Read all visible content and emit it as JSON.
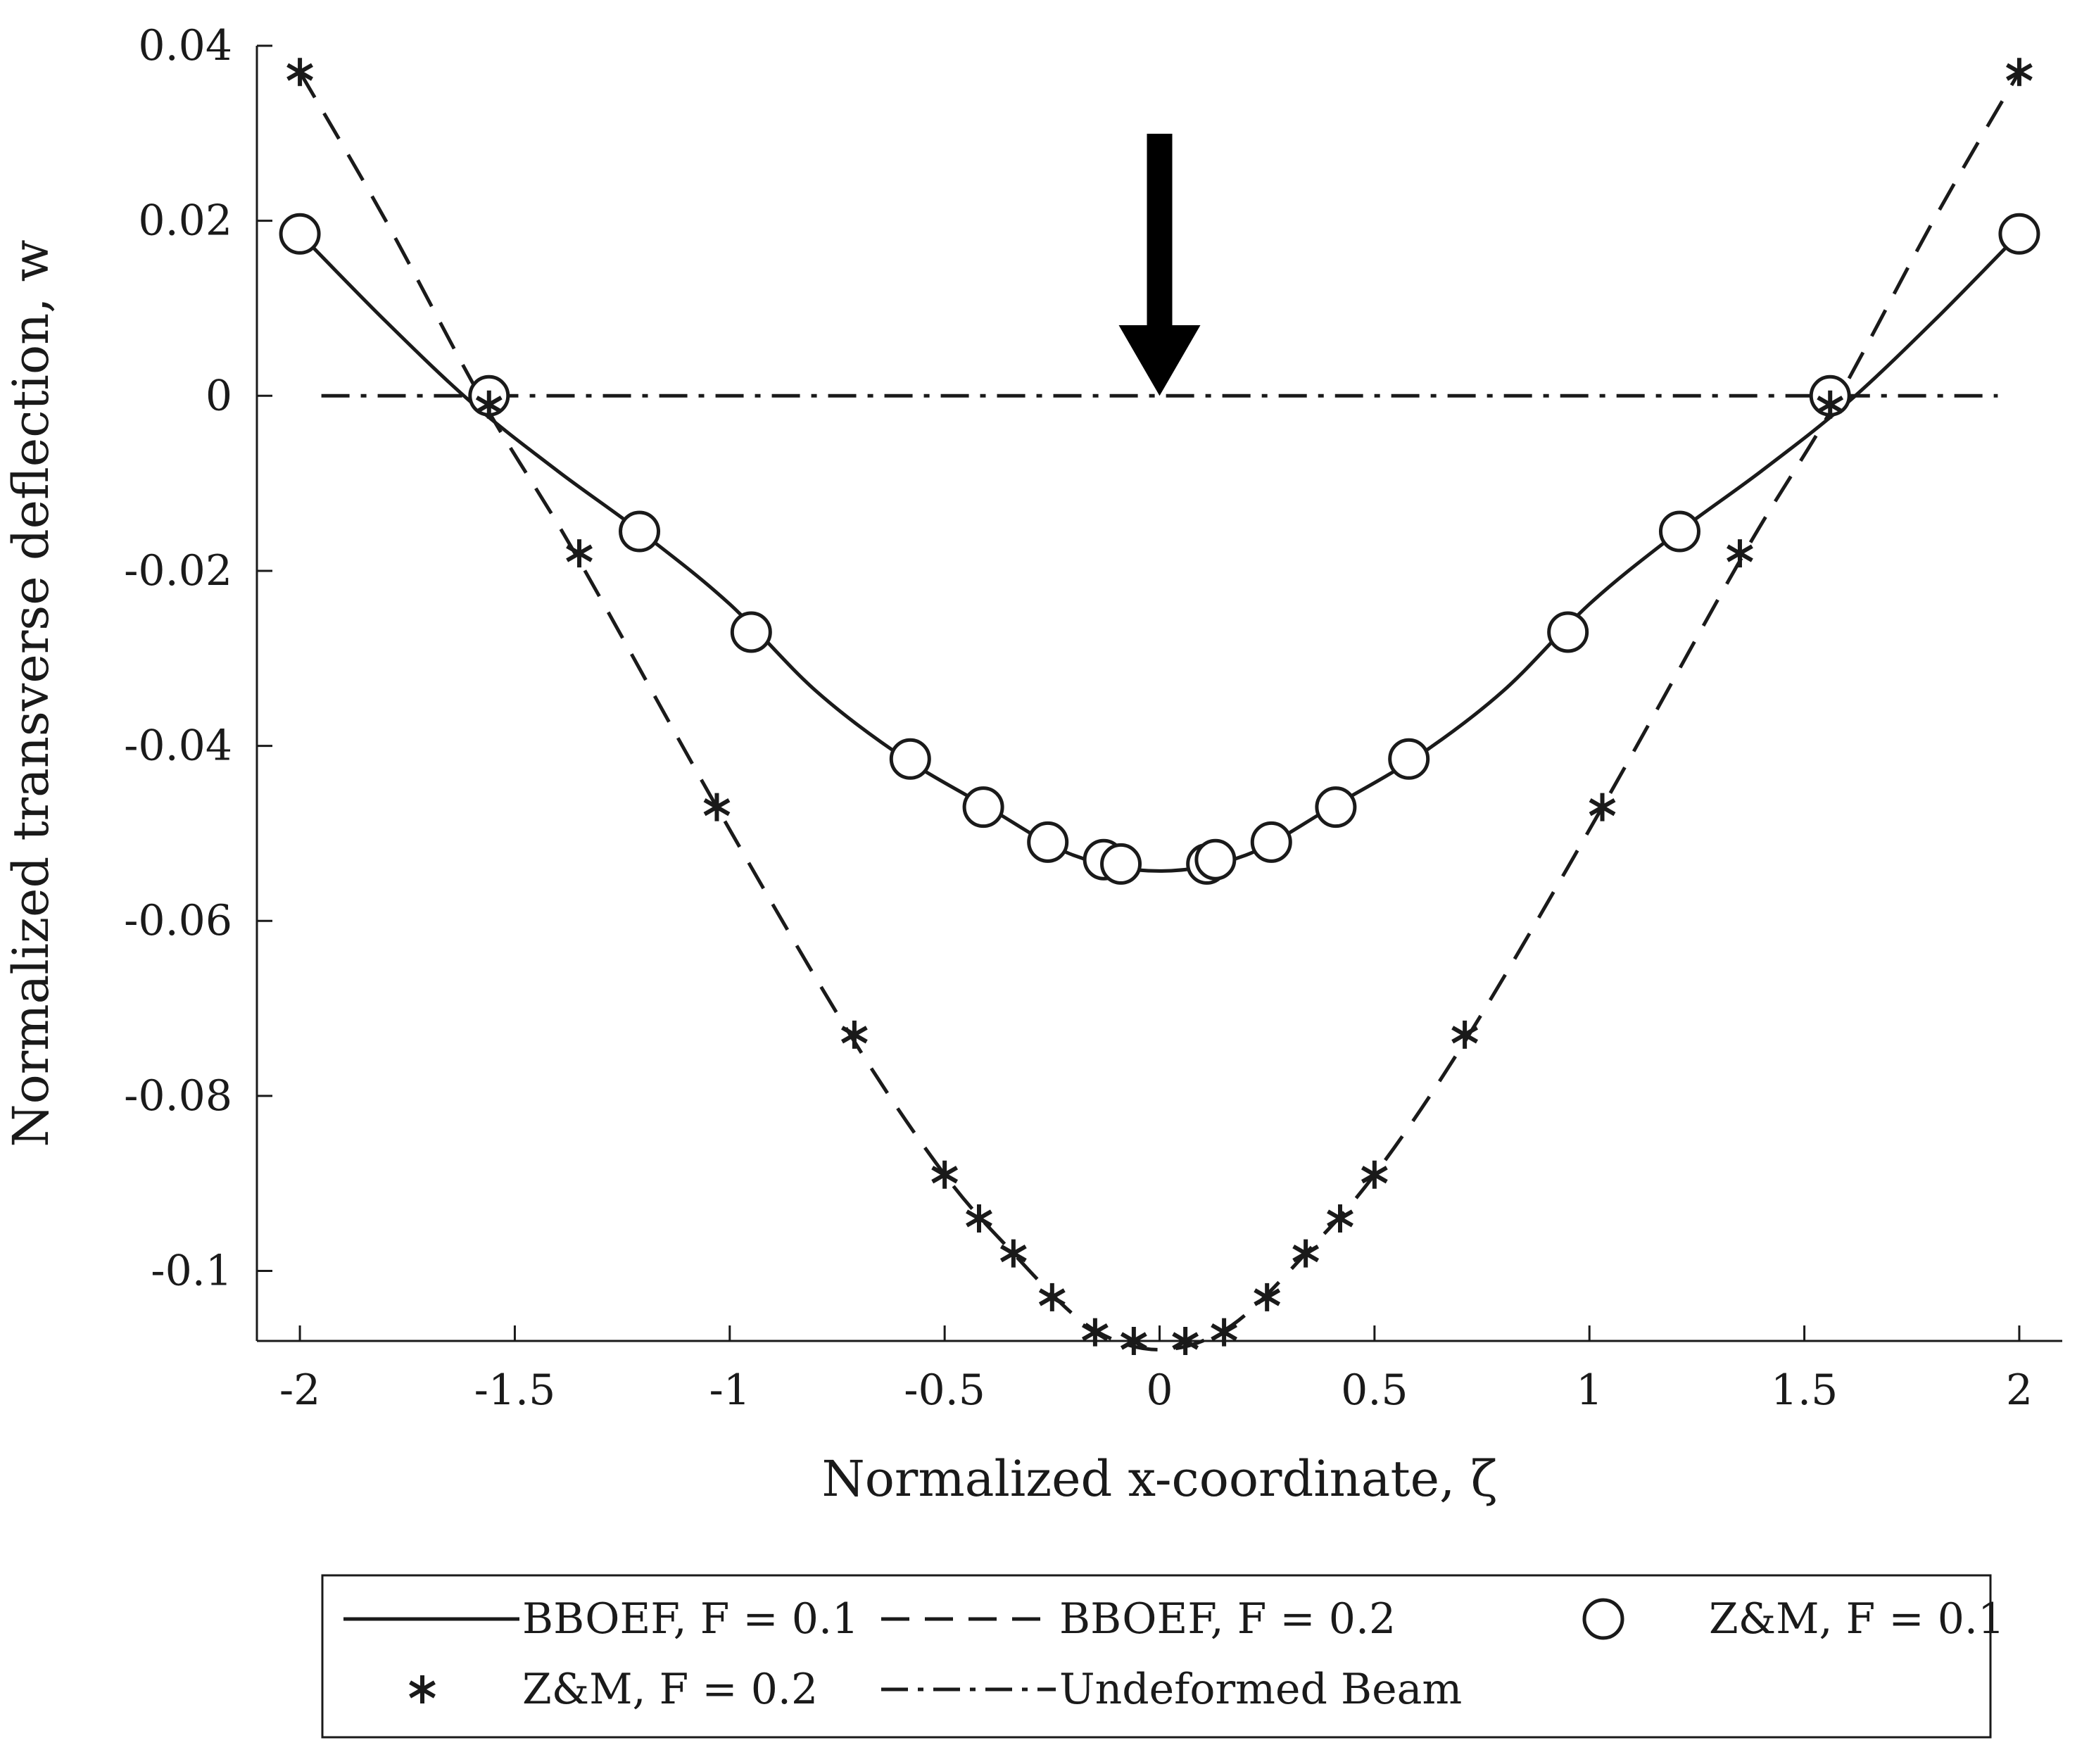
{
  "chart_data": {
    "type": "line",
    "title": "",
    "xlabel": "Normalized x-coordinate, ζ",
    "ylabel": "Normalized transverse deflection, w",
    "xlim": [
      -2.1,
      2.1
    ],
    "ylim": [
      -0.108,
      0.04
    ],
    "xticks": [
      -2,
      -1.5,
      -1,
      -0.5,
      0,
      0.5,
      1,
      1.5,
      2
    ],
    "xtick_labels": [
      "-2",
      "-1.5",
      "-1",
      "-0.5",
      "0",
      "0.5",
      "1",
      "1.5",
      "2"
    ],
    "yticks": [
      0.04,
      0.02,
      0,
      -0.02,
      -0.04,
      -0.06,
      -0.08,
      -0.1
    ],
    "ytick_labels": [
      "0.04",
      "0.02",
      "0",
      "-0.02",
      "-0.04",
      "-0.06",
      "-0.08",
      "-0.1"
    ],
    "grid": false,
    "legend_position": "bottom",
    "load_arrow": {
      "x": 0,
      "label": ""
    },
    "series": [
      {
        "name": "BBOEF, F = 0.1",
        "style": "solid",
        "marker": "none",
        "x": [
          -2,
          -1.8,
          -1.6,
          -1.4,
          -1.2,
          -1.0,
          -0.8,
          -0.6,
          -0.4,
          -0.2,
          0,
          0.2,
          0.4,
          0.6,
          0.8,
          1.0,
          1.2,
          1.4,
          1.6,
          1.8,
          2
        ],
        "y": [
          0.0185,
          0.0085,
          -0.0008,
          -0.0086,
          -0.0158,
          -0.0238,
          -0.0337,
          -0.0412,
          -0.047,
          -0.0525,
          -0.0543,
          -0.0525,
          -0.047,
          -0.0412,
          -0.0337,
          -0.0238,
          -0.0158,
          -0.0086,
          -0.0008,
          0.0085,
          0.0185
        ]
      },
      {
        "name": "BBOEF, F = 0.2",
        "style": "dashed",
        "marker": "none",
        "x": [
          -2,
          -1.8,
          -1.57,
          -1.36,
          -1.03,
          -0.72,
          -0.5,
          -0.34,
          -0.2,
          -0.1,
          0,
          0.1,
          0.2,
          0.34,
          0.5,
          0.72,
          1.03,
          1.36,
          1.57,
          1.8,
          2
        ],
        "y": [
          0.037,
          0.02,
          -0.001,
          -0.018,
          -0.047,
          -0.073,
          -0.089,
          -0.098,
          -0.105,
          -0.108,
          -0.109,
          -0.108,
          -0.105,
          -0.098,
          -0.089,
          -0.073,
          -0.047,
          -0.018,
          -0.001,
          0.02,
          0.037
        ]
      },
      {
        "name": "Z&M, F = 0.1",
        "style": "none",
        "marker": "circle",
        "x": [
          -2,
          -1.56,
          -1.21,
          -0.95,
          -0.58,
          -0.41,
          -0.26,
          -0.13,
          -0.09,
          0.11,
          0.13,
          0.26,
          0.41,
          0.58,
          0.95,
          1.21,
          1.56,
          2
        ],
        "y": [
          0.0185,
          0.0,
          -0.0155,
          -0.027,
          -0.0415,
          -0.047,
          -0.051,
          -0.053,
          -0.0535,
          -0.0535,
          -0.053,
          -0.051,
          -0.047,
          -0.0415,
          -0.027,
          -0.0155,
          0.0,
          0.0185
        ]
      },
      {
        "name": "Z&M, F = 0.2",
        "style": "none",
        "marker": "star",
        "x": [
          -2,
          -1.56,
          -1.35,
          -1.03,
          -0.71,
          -0.5,
          -0.42,
          -0.34,
          -0.25,
          -0.15,
          -0.06,
          0.06,
          0.15,
          0.25,
          0.34,
          0.42,
          0.5,
          0.71,
          1.03,
          1.35,
          1.56,
          2
        ],
        "y": [
          0.037,
          -0.001,
          -0.018,
          -0.047,
          -0.073,
          -0.089,
          -0.094,
          -0.098,
          -0.103,
          -0.107,
          -0.108,
          -0.108,
          -0.107,
          -0.103,
          -0.098,
          -0.094,
          -0.089,
          -0.073,
          -0.047,
          -0.018,
          -0.001,
          0.037
        ]
      },
      {
        "name": "Undeformed Beam",
        "style": "dashdot",
        "marker": "none",
        "x": [
          -1.95,
          1.95
        ],
        "y": [
          0,
          0
        ]
      }
    ]
  }
}
